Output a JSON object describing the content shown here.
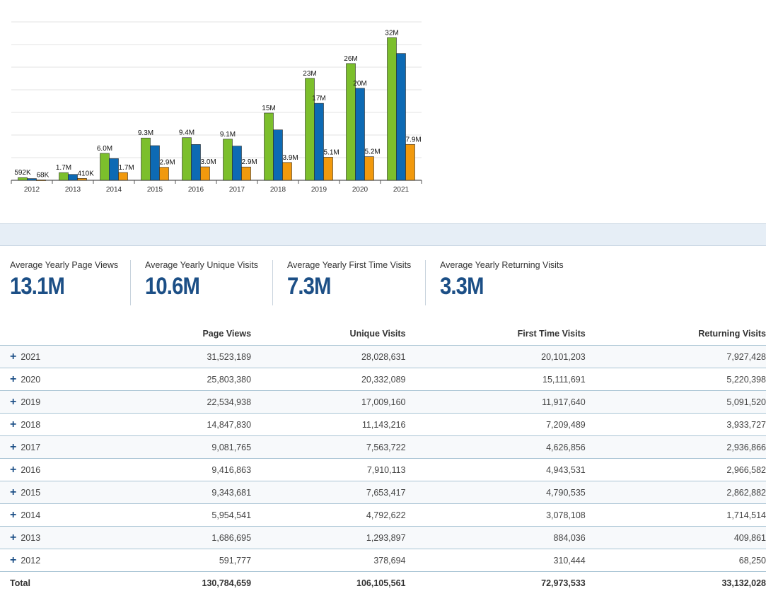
{
  "chart_data": {
    "type": "bar",
    "categories": [
      "2012",
      "2013",
      "2014",
      "2015",
      "2016",
      "2017",
      "2018",
      "2019",
      "2020",
      "2021"
    ],
    "series": [
      {
        "values": [
          591777,
          1686695,
          5954541,
          9343681,
          9416863,
          9081765,
          14847830,
          22534938,
          25803380,
          31523189
        ],
        "labels": [
          "592K",
          "1.7M",
          "6.0M",
          "9.3M",
          "9.4M",
          "9.1M",
          "15M",
          "23M",
          "26M",
          "32M"
        ],
        "color": "#7cbf2c"
      },
      {
        "values": [
          378694,
          1293897,
          4792622,
          7653417,
          7910113,
          7563722,
          11143216,
          17009160,
          20332089,
          28028631
        ],
        "labels": [
          "",
          "",
          "",
          "",
          "",
          "",
          "",
          "17M",
          "20M",
          ""
        ],
        "color": "#0d6ab4"
      },
      {
        "values": [
          68250,
          409861,
          1714514,
          2862882,
          2966582,
          2936866,
          3933727,
          5091520,
          5220398,
          7927428
        ],
        "labels": [
          "68K",
          "410K",
          "1.7M",
          "2.9M",
          "3.0M",
          "2.9M",
          "3.9M",
          "5.1M",
          "5.2M",
          "7.9M"
        ],
        "color": "#f1990d"
      }
    ],
    "ylim": [
      0,
      35000000
    ],
    "grid": true,
    "legend": "none"
  },
  "stats": [
    {
      "label": "Average Yearly Page Views",
      "value": "13.1M"
    },
    {
      "label": "Average Yearly Unique Visits",
      "value": "10.6M"
    },
    {
      "label": "Average Yearly First Time Visits",
      "value": "7.3M"
    },
    {
      "label": "Average Yearly Returning Visits",
      "value": "3.3M"
    }
  ],
  "table": {
    "headers": [
      "",
      "Page Views",
      "Unique Visits",
      "First Time Visits",
      "Returning Visits"
    ],
    "expand_symbol": "+",
    "rows": [
      [
        "2021",
        "31,523,189",
        "28,028,631",
        "20,101,203",
        "7,927,428"
      ],
      [
        "2020",
        "25,803,380",
        "20,332,089",
        "15,111,691",
        "5,220,398"
      ],
      [
        "2019",
        "22,534,938",
        "17,009,160",
        "11,917,640",
        "5,091,520"
      ],
      [
        "2018",
        "14,847,830",
        "11,143,216",
        "7,209,489",
        "3,933,727"
      ],
      [
        "2017",
        "9,081,765",
        "7,563,722",
        "4,626,856",
        "2,936,866"
      ],
      [
        "2016",
        "9,416,863",
        "7,910,113",
        "4,943,531",
        "2,966,582"
      ],
      [
        "2015",
        "9,343,681",
        "7,653,417",
        "4,790,535",
        "2,862,882"
      ],
      [
        "2014",
        "5,954,541",
        "4,792,622",
        "3,078,108",
        "1,714,514"
      ],
      [
        "2013",
        "1,686,695",
        "1,293,897",
        "884,036",
        "409,861"
      ],
      [
        "2012",
        "591,777",
        "378,694",
        "310,444",
        "68,250"
      ]
    ],
    "total": [
      "Total",
      "130,784,659",
      "106,105,561",
      "72,973,533",
      "33,132,028"
    ]
  },
  "colors": {
    "accent": "#1c4f86",
    "band": "#e6eef6",
    "row_border": "#a9c4d4"
  }
}
